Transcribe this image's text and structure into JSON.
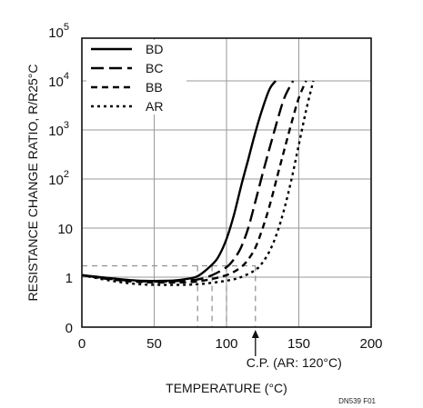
{
  "chart_data": {
    "type": "line",
    "title": "",
    "xlabel": "TEMPERATURE (°C)",
    "ylabel": "RESISTANCE CHANGE RATIO, R/R25°C",
    "xlim": [
      0,
      200
    ],
    "x_ticks": [
      0,
      50,
      100,
      150,
      200
    ],
    "x_tick_labels": [
      "0",
      "50",
      "100",
      "150",
      "200"
    ],
    "y_scale": "log-like (0 at bottom, then 1 to 10^5)",
    "y_tick_values": [
      0,
      1,
      10,
      100,
      1000,
      10000,
      100000
    ],
    "y_tick_labels": [
      {
        "base": "0",
        "exp": ""
      },
      {
        "base": "1",
        "exp": ""
      },
      {
        "base": "10",
        "exp": ""
      },
      {
        "base": "10",
        "exp": "2"
      },
      {
        "base": "10",
        "exp": "3"
      },
      {
        "base": "10",
        "exp": "4"
      },
      {
        "base": "10",
        "exp": "5"
      }
    ],
    "grid": true,
    "legend_position": "top-left",
    "series": [
      {
        "name": "BD",
        "line_style": "solid",
        "x": [
          0,
          20,
          40,
          60,
          70,
          80,
          90,
          95,
          100,
          105,
          110,
          115,
          120,
          125,
          130,
          134
        ],
        "y": [
          1.1,
          0.95,
          0.85,
          0.85,
          0.9,
          1.05,
          1.8,
          2.8,
          6,
          18,
          70,
          250,
          900,
          2800,
          7000,
          10000
        ]
      },
      {
        "name": "BC",
        "line_style": "long-dash",
        "x": [
          0,
          20,
          40,
          60,
          80,
          90,
          100,
          105,
          110,
          115,
          120,
          125,
          130,
          135,
          140,
          146
        ],
        "y": [
          1.1,
          0.92,
          0.83,
          0.82,
          0.9,
          1.1,
          1.6,
          2.3,
          4,
          10,
          35,
          130,
          450,
          1500,
          4500,
          10000
        ]
      },
      {
        "name": "BB",
        "line_style": "short-dash",
        "x": [
          0,
          20,
          40,
          60,
          80,
          100,
          110,
          115,
          120,
          125,
          130,
          135,
          140,
          145,
          150,
          155
        ],
        "y": [
          1.1,
          0.9,
          0.8,
          0.78,
          0.82,
          1.1,
          1.6,
          2.3,
          4,
          10,
          30,
          110,
          400,
          1400,
          4500,
          10000
        ]
      },
      {
        "name": "AR",
        "line_style": "dotted",
        "x": [
          0,
          20,
          40,
          60,
          80,
          100,
          110,
          120,
          125,
          130,
          135,
          140,
          145,
          150,
          155,
          160
        ],
        "y": [
          1.1,
          0.85,
          0.72,
          0.7,
          0.72,
          0.85,
          1.0,
          1.4,
          2.0,
          3.5,
          8,
          25,
          100,
          500,
          2500,
          10000
        ]
      }
    ],
    "reference_lines": {
      "horizontal_ratio": 1.7,
      "vertical_temps": [
        80,
        90,
        100,
        120
      ]
    },
    "annotations": {
      "cp_label": "C.P. (AR: 120°C)",
      "cp_x": 120,
      "figure_id": "DN539 F01"
    }
  }
}
